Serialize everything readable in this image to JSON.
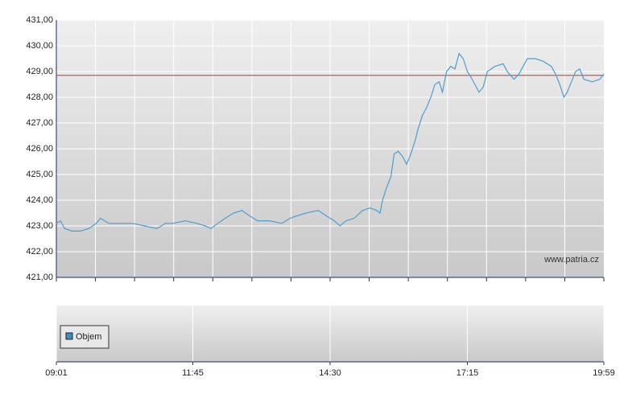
{
  "chart_data": {
    "type": "line",
    "watermark": "www.patria.cz",
    "x": [
      "09:01",
      "09:06",
      "09:11",
      "09:20",
      "09:30",
      "09:40",
      "09:49",
      "09:54",
      "10:04",
      "10:18",
      "10:33",
      "10:47",
      "11:02",
      "11:12",
      "11:21",
      "11:36",
      "11:50",
      "12:00",
      "12:07",
      "12:15",
      "12:24",
      "12:34",
      "12:44",
      "12:53",
      "13:03",
      "13:17",
      "13:32",
      "13:42",
      "13:51",
      "14:01",
      "14:16",
      "14:25",
      "14:35",
      "14:42",
      "14:49",
      "14:59",
      "15:09",
      "15:18",
      "15:26",
      "15:30",
      "15:33",
      "15:38",
      "15:43",
      "15:47",
      "15:52",
      "15:57",
      "16:02",
      "16:07",
      "16:12",
      "16:16",
      "16:21",
      "16:26",
      "16:31",
      "16:36",
      "16:41",
      "16:45",
      "16:50",
      "16:55",
      "17:00",
      "17:05",
      "17:10",
      "17:15",
      "17:19",
      "17:24",
      "17:29",
      "17:34",
      "17:39",
      "17:48",
      "17:58",
      "18:03",
      "18:11",
      "18:17",
      "18:27",
      "18:37",
      "18:46",
      "18:56",
      "19:01",
      "19:06",
      "19:11",
      "19:15",
      "19:20",
      "19:25",
      "19:30",
      "19:35",
      "19:45",
      "19:54",
      "19:59"
    ],
    "series": [
      {
        "color": "#4a9fcf",
        "values": [
          423.1,
          423.2,
          422.9,
          422.8,
          422.8,
          422.9,
          423.1,
          423.3,
          423.1,
          423.1,
          423.1,
          423.0,
          422.9,
          423.1,
          423.1,
          423.2,
          423.1,
          423.0,
          422.9,
          423.1,
          423.3,
          423.5,
          423.6,
          423.4,
          423.2,
          423.2,
          423.1,
          423.3,
          423.4,
          423.5,
          423.6,
          423.4,
          423.2,
          423.0,
          423.2,
          423.3,
          423.6,
          423.7,
          423.6,
          423.5,
          424.0,
          424.5,
          424.9,
          425.8,
          425.9,
          425.7,
          425.4,
          425.8,
          426.3,
          426.8,
          427.3,
          427.6,
          428.0,
          428.5,
          428.6,
          428.2,
          429.0,
          429.2,
          429.1,
          429.7,
          429.5,
          429.0,
          428.8,
          428.5,
          428.2,
          428.4,
          429.0,
          429.2,
          429.3,
          429.0,
          428.7,
          428.9,
          429.5,
          429.5,
          429.4,
          429.2,
          428.9,
          428.5,
          428.0,
          428.2,
          428.6,
          429.0,
          429.1,
          428.7,
          428.6,
          428.7,
          428.9
        ]
      }
    ],
    "reference_line": 428.85,
    "reference_color": "#cc3333",
    "ylim": [
      421,
      431
    ],
    "yticks": [
      {
        "value": 421,
        "label": "421,00"
      },
      {
        "value": 422,
        "label": "422,00"
      },
      {
        "value": 423,
        "label": "423,00"
      },
      {
        "value": 424,
        "label": "424,00"
      },
      {
        "value": 425,
        "label": "425,00"
      },
      {
        "value": 426,
        "label": "426,00"
      },
      {
        "value": 427,
        "label": "427,00"
      },
      {
        "value": 428,
        "label": "428,00"
      },
      {
        "value": 429,
        "label": "429,00"
      },
      {
        "value": 430,
        "label": "430,00"
      },
      {
        "value": 431,
        "label": "431,00"
      }
    ],
    "xlim": [
      "09:01",
      "19:59"
    ],
    "xticks": [
      "09:01",
      "11:45",
      "14:30",
      "17:15",
      "19:59"
    ],
    "grid": true,
    "volume": {
      "name": "Objem",
      "color": "#3b8fc4"
    }
  }
}
